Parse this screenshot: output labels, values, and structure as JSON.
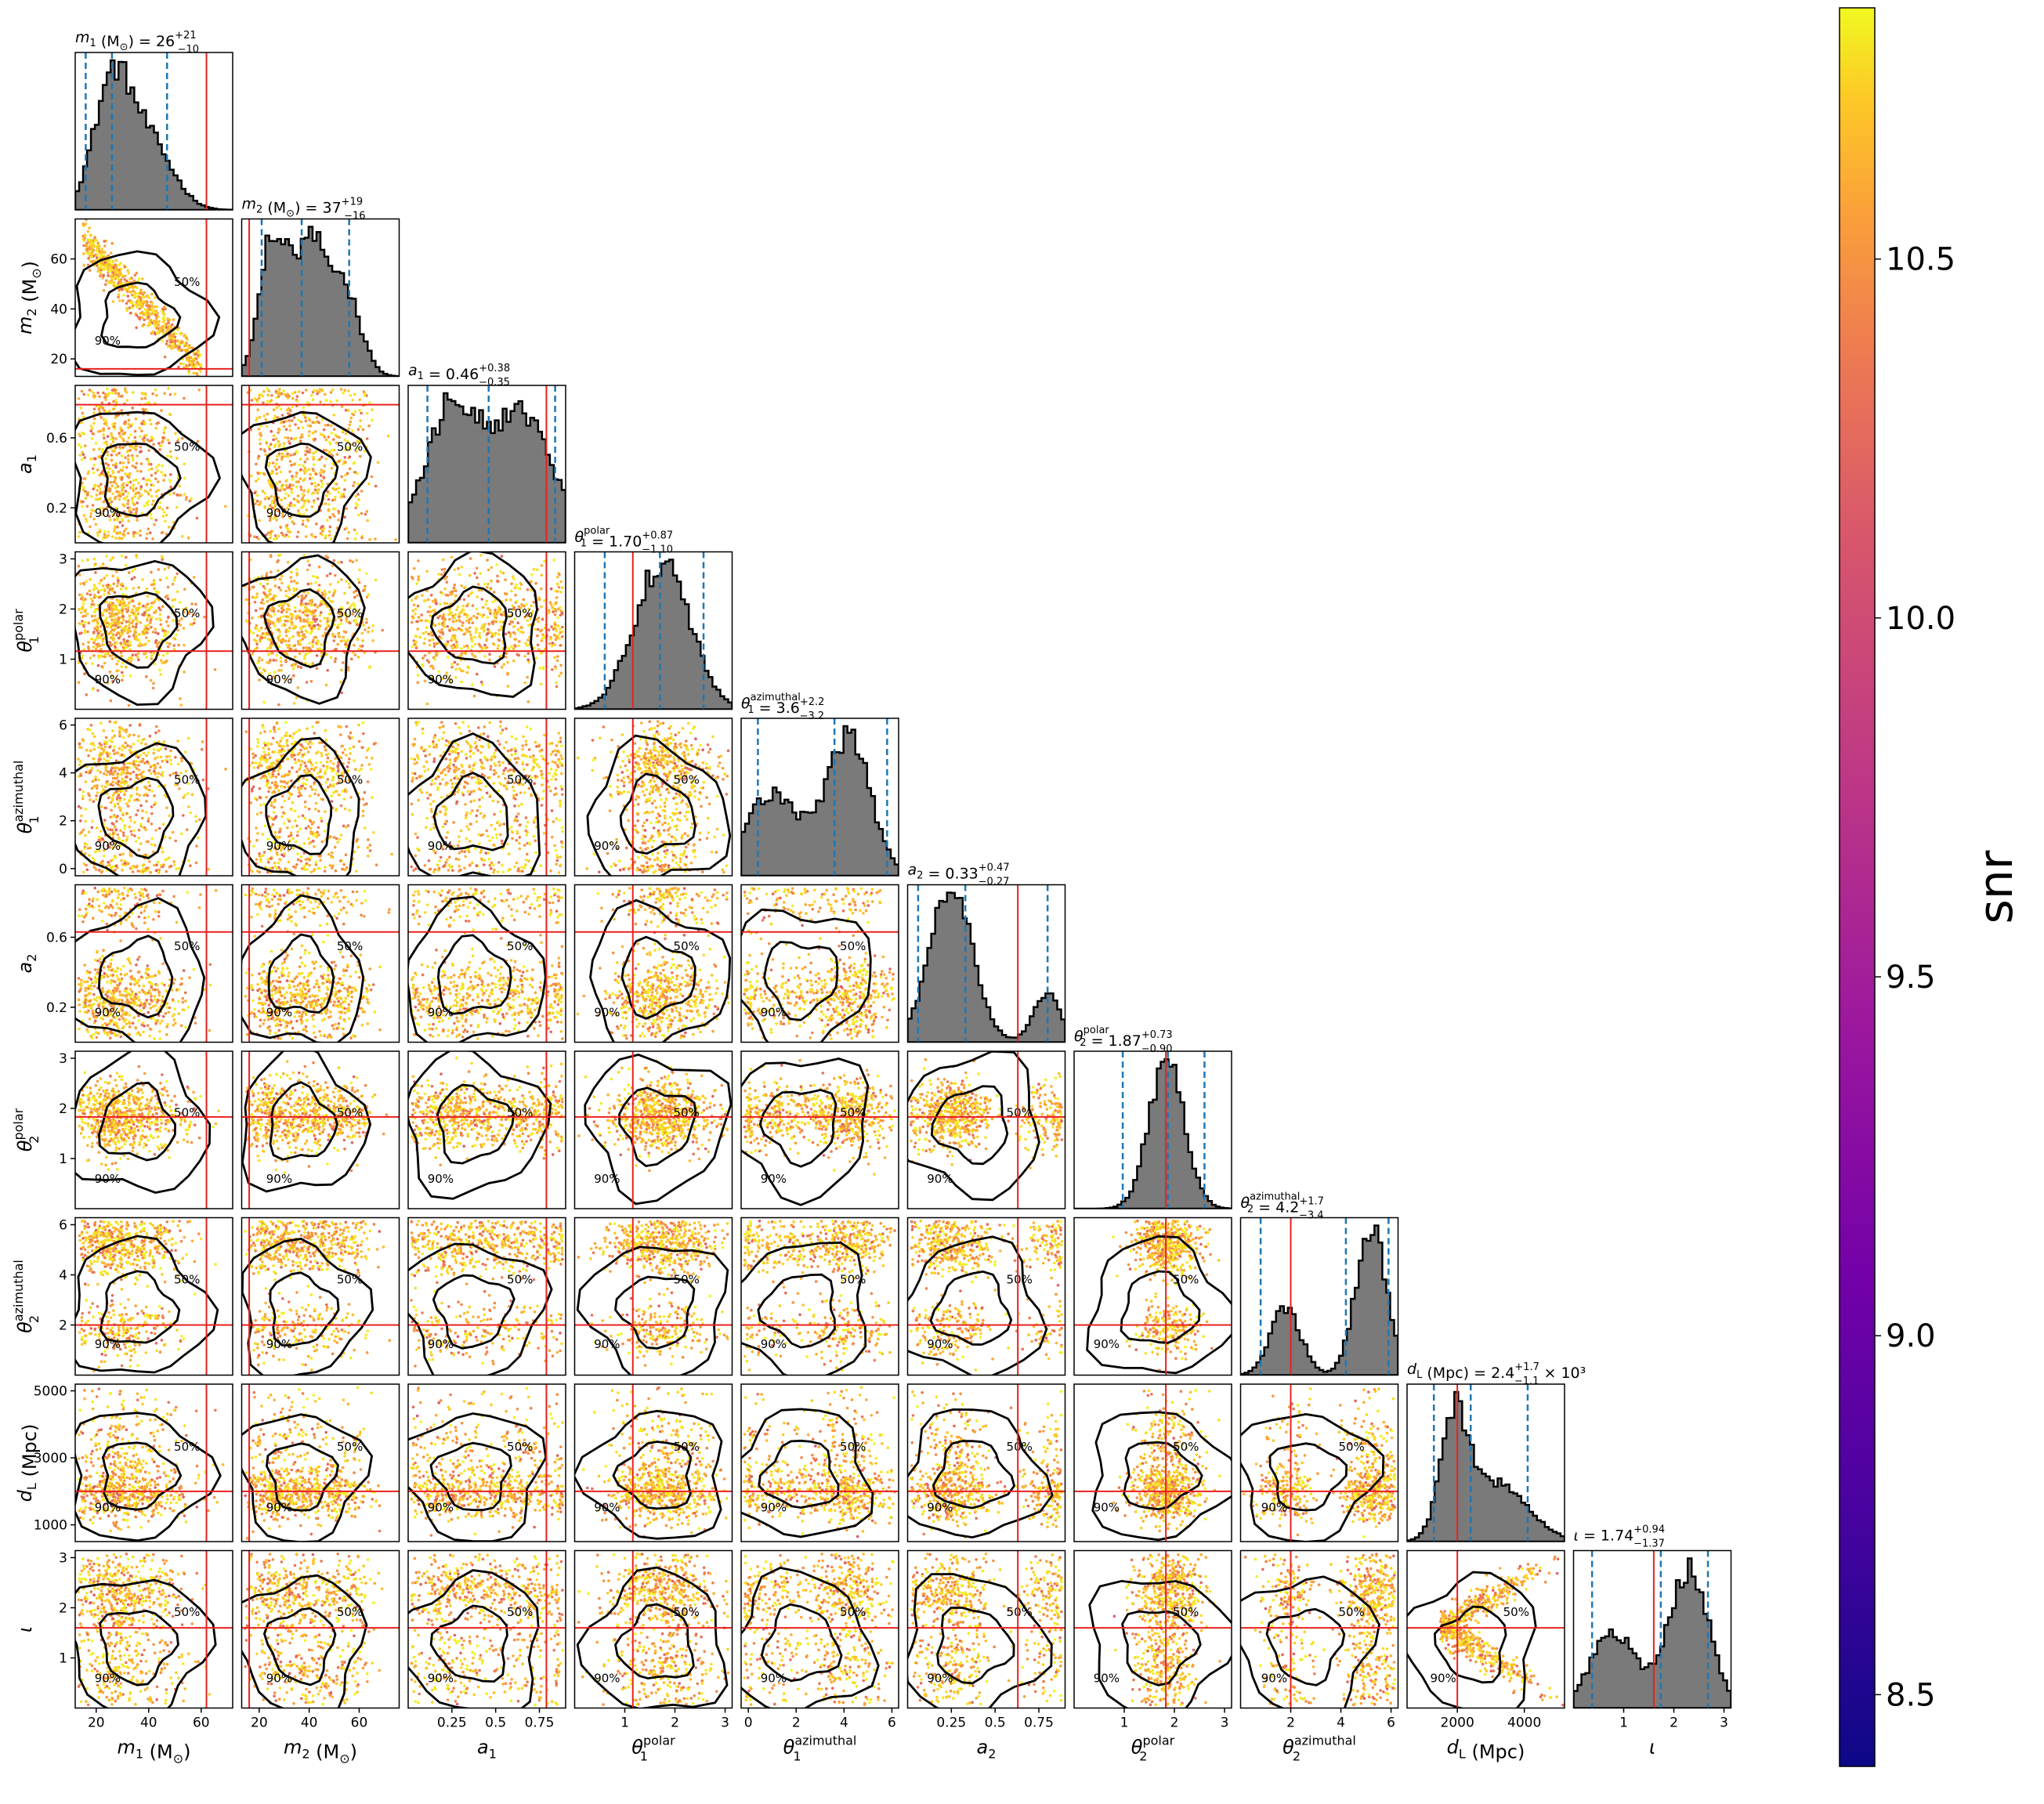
{
  "chart_data": {
    "type": "corner",
    "parameters": [
      {
        "key": "m1",
        "label_base": "m",
        "label_sub": "1",
        "unit": " (M",
        "unit_sub": "⊙",
        "unit_end": ")",
        "title_value": "26",
        "title_plus": "+21",
        "title_minus": "−10",
        "ticks": [
          20,
          40,
          60
        ],
        "range": [
          12,
          72
        ],
        "lo": 16,
        "med": 26,
        "hi": 47,
        "truth": 62,
        "peaks": [
          [
            26,
            1.0,
            7
          ],
          [
            40,
            0.55,
            9
          ]
        ]
      },
      {
        "key": "m2",
        "label_base": "m",
        "label_sub": "2",
        "unit": " (M",
        "unit_sub": "⊙",
        "unit_end": ")",
        "title_value": "37",
        "title_plus": "+19",
        "title_minus": "−16",
        "ticks": [
          20,
          40,
          60
        ],
        "range": [
          13,
          76
        ],
        "lo": 21,
        "med": 37,
        "hi": 56,
        "truth": 16,
        "peaks": [
          [
            25,
            0.8,
            5
          ],
          [
            40,
            0.85,
            7
          ],
          [
            55,
            0.45,
            6
          ]
        ]
      },
      {
        "key": "a1",
        "label_base": "a",
        "label_sub": "1",
        "unit": "",
        "title_value": "0.46",
        "title_plus": "+0.38",
        "title_minus": "−0.35",
        "ticks": [
          0.25,
          0.5,
          0.75
        ],
        "ticks_2d": [
          0.2,
          0.6
        ],
        "range": [
          0.0,
          0.9
        ],
        "lo": 0.11,
        "med": 0.46,
        "hi": 0.84,
        "truth": 0.79,
        "peaks": [
          [
            0.25,
            0.7,
            0.15
          ],
          [
            0.65,
            0.65,
            0.18
          ]
        ]
      },
      {
        "key": "th1p",
        "label_base": "θ",
        "label_sub": "1",
        "label_sup": "polar",
        "unit": "",
        "title_value": "1.70",
        "title_plus": "+0.87",
        "title_minus": "−1.10",
        "ticks": [
          1,
          2,
          3
        ],
        "range": [
          0.0,
          3.14
        ],
        "lo": 0.6,
        "med": 1.7,
        "hi": 2.57,
        "truth": 1.16,
        "peaks": [
          [
            1.75,
            1.0,
            0.55
          ]
        ]
      },
      {
        "key": "th1a",
        "label_base": "θ",
        "label_sub": "1",
        "label_sup": "azimuthal",
        "unit": "",
        "title_value": "3.6",
        "title_plus": "+2.2",
        "title_minus": "−3.2",
        "ticks": [
          0,
          2,
          4,
          6
        ],
        "range": [
          -0.3,
          6.28
        ],
        "lo": 0.4,
        "med": 3.6,
        "hi": 5.8,
        "truth": null,
        "peaks": [
          [
            1.0,
            0.5,
            1.2
          ],
          [
            4.2,
            0.85,
            0.9
          ]
        ]
      },
      {
        "key": "a2",
        "label_base": "a",
        "label_sub": "2",
        "unit": "",
        "title_value": "0.33",
        "title_plus": "+0.47",
        "title_minus": "−0.27",
        "ticks": [
          0.25,
          0.5,
          0.75
        ],
        "ticks_2d": [
          0.2,
          0.6
        ],
        "range": [
          0.0,
          0.9
        ],
        "lo": 0.06,
        "med": 0.33,
        "hi": 0.8,
        "truth": 0.63,
        "peaks": [
          [
            0.25,
            1.0,
            0.12
          ],
          [
            0.8,
            0.3,
            0.08
          ]
        ]
      },
      {
        "key": "th2p",
        "label_base": "θ",
        "label_sub": "2",
        "label_sup": "polar",
        "unit": "",
        "title_value": "1.87",
        "title_plus": "+0.73",
        "title_minus": "−0.90",
        "ticks": [
          1,
          2,
          3
        ],
        "range": [
          0.0,
          3.14
        ],
        "lo": 0.97,
        "med": 1.87,
        "hi": 2.6,
        "truth": 1.83,
        "peaks": [
          [
            1.85,
            1.0,
            0.35
          ]
        ]
      },
      {
        "key": "th2a",
        "label_base": "θ",
        "label_sub": "2",
        "label_sup": "azimuthal",
        "unit": "",
        "title_value": "4.2",
        "title_plus": "+1.7",
        "title_minus": "−3.4",
        "ticks": [
          2,
          4,
          6
        ],
        "range": [
          0.0,
          6.28
        ],
        "lo": 0.8,
        "med": 4.2,
        "hi": 5.9,
        "truth": 2.0,
        "peaks": [
          [
            1.8,
            0.45,
            0.6
          ],
          [
            5.2,
            1.0,
            0.6
          ]
        ]
      },
      {
        "key": "dl",
        "label_base": "d",
        "label_sub": "L",
        "unit": " (Mpc)",
        "title_value": "2.4",
        "title_plus": "+1.7",
        "title_minus": "−1.1",
        "title_suffix": " × 10³",
        "ticks": [
          2000,
          4000
        ],
        "ticks_2d": [
          1000,
          3000,
          5000
        ],
        "range": [
          500,
          5200
        ],
        "lo": 1300,
        "med": 2400,
        "hi": 4100,
        "truth": 2000,
        "peaks": [
          [
            1900,
            1.0,
            400
          ],
          [
            3200,
            0.5,
            900
          ]
        ]
      },
      {
        "key": "iota",
        "label_base": "ι",
        "label_sub": "",
        "unit": "",
        "title_value": "1.74",
        "title_plus": "+0.94",
        "title_minus": "−1.37",
        "ticks": [
          1,
          2,
          3
        ],
        "range": [
          0.0,
          3.14
        ],
        "lo": 0.37,
        "med": 1.74,
        "hi": 2.68,
        "truth": 1.6,
        "peaks": [
          [
            0.8,
            0.55,
            0.45
          ],
          [
            2.3,
            1.0,
            0.4
          ]
        ]
      }
    ],
    "pairs_2d": "lower-triangle scatter colored by snr with 50% and 90% credible contours",
    "contour_labels": [
      "50%",
      "90%"
    ],
    "colorbar": {
      "label": "snr",
      "ticks": [
        8.5,
        9.0,
        9.5,
        10.0,
        10.5
      ],
      "range": [
        8.4,
        10.85
      ],
      "colormap": "plasma"
    },
    "colors": {
      "hist_fill": "#7a7a7a",
      "quantile": "#1f77b4",
      "truth": "#e8211f",
      "contour": "#000000"
    }
  }
}
